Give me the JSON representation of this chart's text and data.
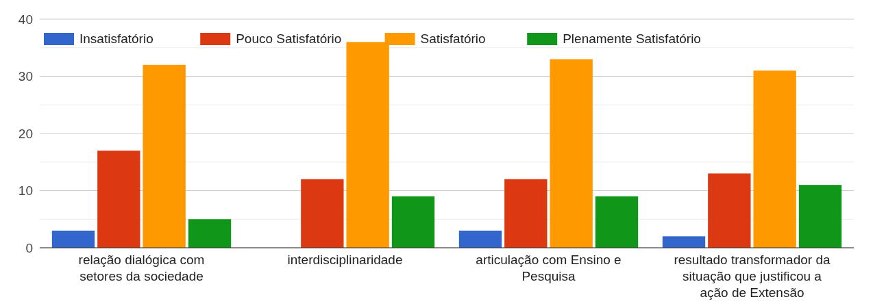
{
  "chart_data": {
    "type": "bar",
    "categories": [
      "relação dialógica com setores da sociedade",
      "interdisciplinaridade",
      "articulação com Ensino e Pesquisa",
      "resultado transformador da situação que justificou a ação de Extensão"
    ],
    "series": [
      {
        "name": "Insatisfatório",
        "color": "#3366cc",
        "values": [
          3,
          0,
          3,
          2
        ]
      },
      {
        "name": "Pouco Satisfatório",
        "color": "#dc3912",
        "values": [
          17,
          12,
          12,
          13
        ]
      },
      {
        "name": "Satisfatório",
        "color": "#ff9900",
        "values": [
          32,
          36,
          33,
          31
        ]
      },
      {
        "name": "Plenamente Satisfatório",
        "color": "#109618",
        "values": [
          5,
          9,
          9,
          11
        ]
      }
    ],
    "ylim": [
      0,
      40
    ],
    "yticks": [
      0,
      {
        "value": 5,
        "label": null
      },
      10,
      {
        "value": 15,
        "label": null
      },
      20,
      {
        "value": 25,
        "label": null
      },
      30,
      {
        "value": 35,
        "label": null
      },
      40
    ],
    "grid": true,
    "legend": "top left"
  }
}
